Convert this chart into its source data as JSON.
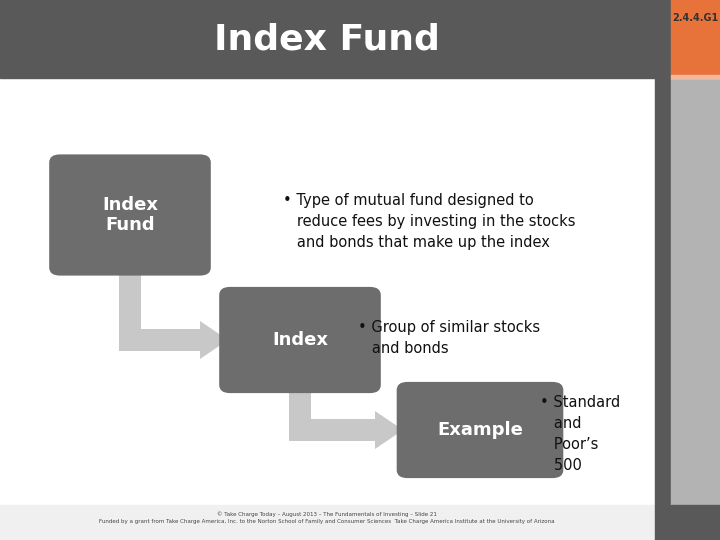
{
  "title": "Index Fund",
  "slide_id": "2.4.4.G1",
  "bg_color": "#ffffff",
  "header_bg": "#595959",
  "header_text_color": "#ffffff",
  "sidebar_dark": "#595959",
  "sidebar_orange": "#e8733a",
  "sidebar_light": "#b3b3b3",
  "sidebar_peach": "#f2b99f",
  "box_color": "#6d6d6d",
  "box_text_color": "#ffffff",
  "arrow_color": "#c8c8c8",
  "text_color": "#111111",
  "footer_bg": "#f0f0f0",
  "footer_text": "© Take Charge Today – August 2013 – The Fundamentals of Investing – Slide 21\nFunded by a grant from Take Charge America, Inc. to the Norton School of Family and Consumer Sciences  Take Charge America Institute at the University of Arizona"
}
